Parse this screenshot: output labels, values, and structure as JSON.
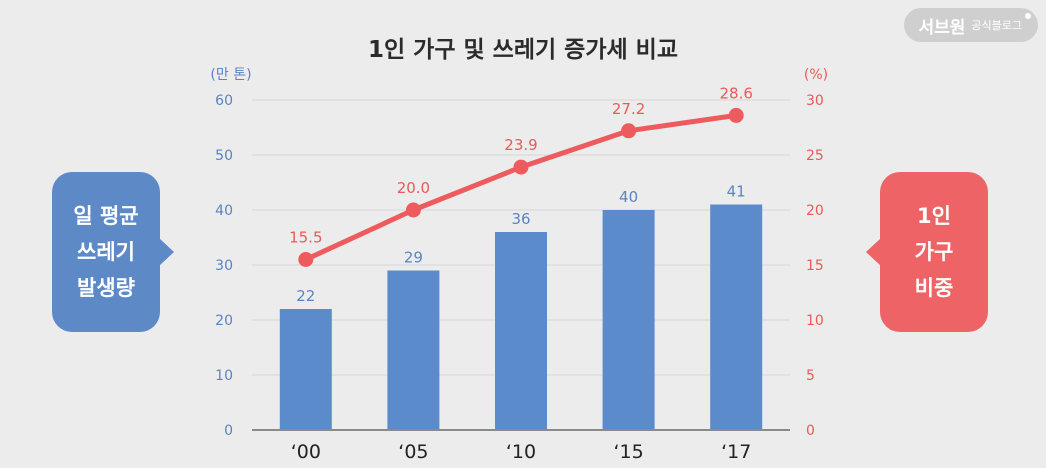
{
  "badge": {
    "brand": "서브원",
    "sub": "공식블로그"
  },
  "left_bubble": {
    "lines": [
      "일 평균",
      "쓰레기",
      "발생량"
    ]
  },
  "right_bubble": {
    "lines": [
      "1인",
      "가구",
      "비중"
    ]
  },
  "colors": {
    "bar": "#5b8bca",
    "line": "#ee5b5e",
    "left_axis": "#5a84c4",
    "right_axis": "#e85a5a",
    "grid": "#d6d6d6"
  },
  "chart_data": {
    "type": "bar",
    "title": "1인 가구 및 쓰레기 증가세 비교",
    "categories": [
      "‘00",
      "‘05",
      "‘10",
      "‘15",
      "‘17"
    ],
    "series": [
      {
        "name": "일 평균 쓰레기 발생량",
        "type": "bar",
        "axis": "left",
        "values": [
          22,
          29,
          36,
          40,
          41
        ],
        "labels": [
          "22",
          "29",
          "36",
          "40",
          "41"
        ]
      },
      {
        "name": "1인 가구 비중",
        "type": "line",
        "axis": "right",
        "values": [
          15.5,
          20.0,
          23.9,
          27.2,
          28.6
        ],
        "labels": [
          "15.5",
          "20.0",
          "23.9",
          "27.2",
          "28.6"
        ]
      }
    ],
    "y_left": {
      "label": "(만 톤)",
      "min": 0,
      "max": 60,
      "ticks": [
        "0",
        "10",
        "20",
        "30",
        "40",
        "50",
        "60"
      ]
    },
    "y_right": {
      "label": "(%)",
      "min": 0,
      "max": 30,
      "ticks": [
        "0",
        "5",
        "10",
        "15",
        "20",
        "25",
        "30"
      ]
    },
    "grid": true
  }
}
